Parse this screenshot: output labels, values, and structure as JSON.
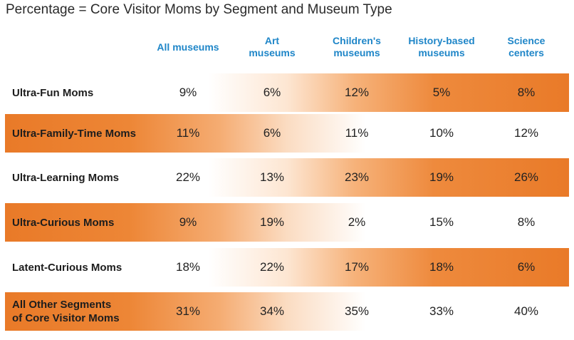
{
  "title": "Percentage = Core Visitor Moms by Segment and Museum Type",
  "chart_data": {
    "type": "table",
    "title": "Percentage = Core Visitor Moms by Segment and Museum Type",
    "columns": [
      [
        "All museums"
      ],
      [
        "Art",
        "museums"
      ],
      [
        "Children's",
        "museums"
      ],
      [
        "History-based",
        "museums"
      ],
      [
        "Science",
        "centers"
      ]
    ],
    "rows": [
      {
        "label": [
          "Ultra-Fun Moms"
        ],
        "values": [
          "9%",
          "6%",
          "12%",
          "5%",
          "8%"
        ]
      },
      {
        "label": [
          "Ultra-Family-Time Moms"
        ],
        "values": [
          "11%",
          "6%",
          "11%",
          "10%",
          "12%"
        ]
      },
      {
        "label": [
          "Ultra-Learning Moms"
        ],
        "values": [
          "22%",
          "13%",
          "23%",
          "19%",
          "26%"
        ]
      },
      {
        "label": [
          "Ultra-Curious Moms"
        ],
        "values": [
          "9%",
          "19%",
          "2%",
          "15%",
          "8%"
        ]
      },
      {
        "label": [
          "Latent-Curious Moms"
        ],
        "values": [
          "18%",
          "22%",
          "17%",
          "18%",
          "6%"
        ]
      },
      {
        "label": [
          "All Other Segments",
          "of Core Visitor Moms"
        ],
        "values": [
          "31%",
          "34%",
          "35%",
          "33%",
          "40%"
        ]
      }
    ],
    "colors": {
      "header_text": "#1f86c8",
      "band_orange": "#e97a28"
    }
  }
}
